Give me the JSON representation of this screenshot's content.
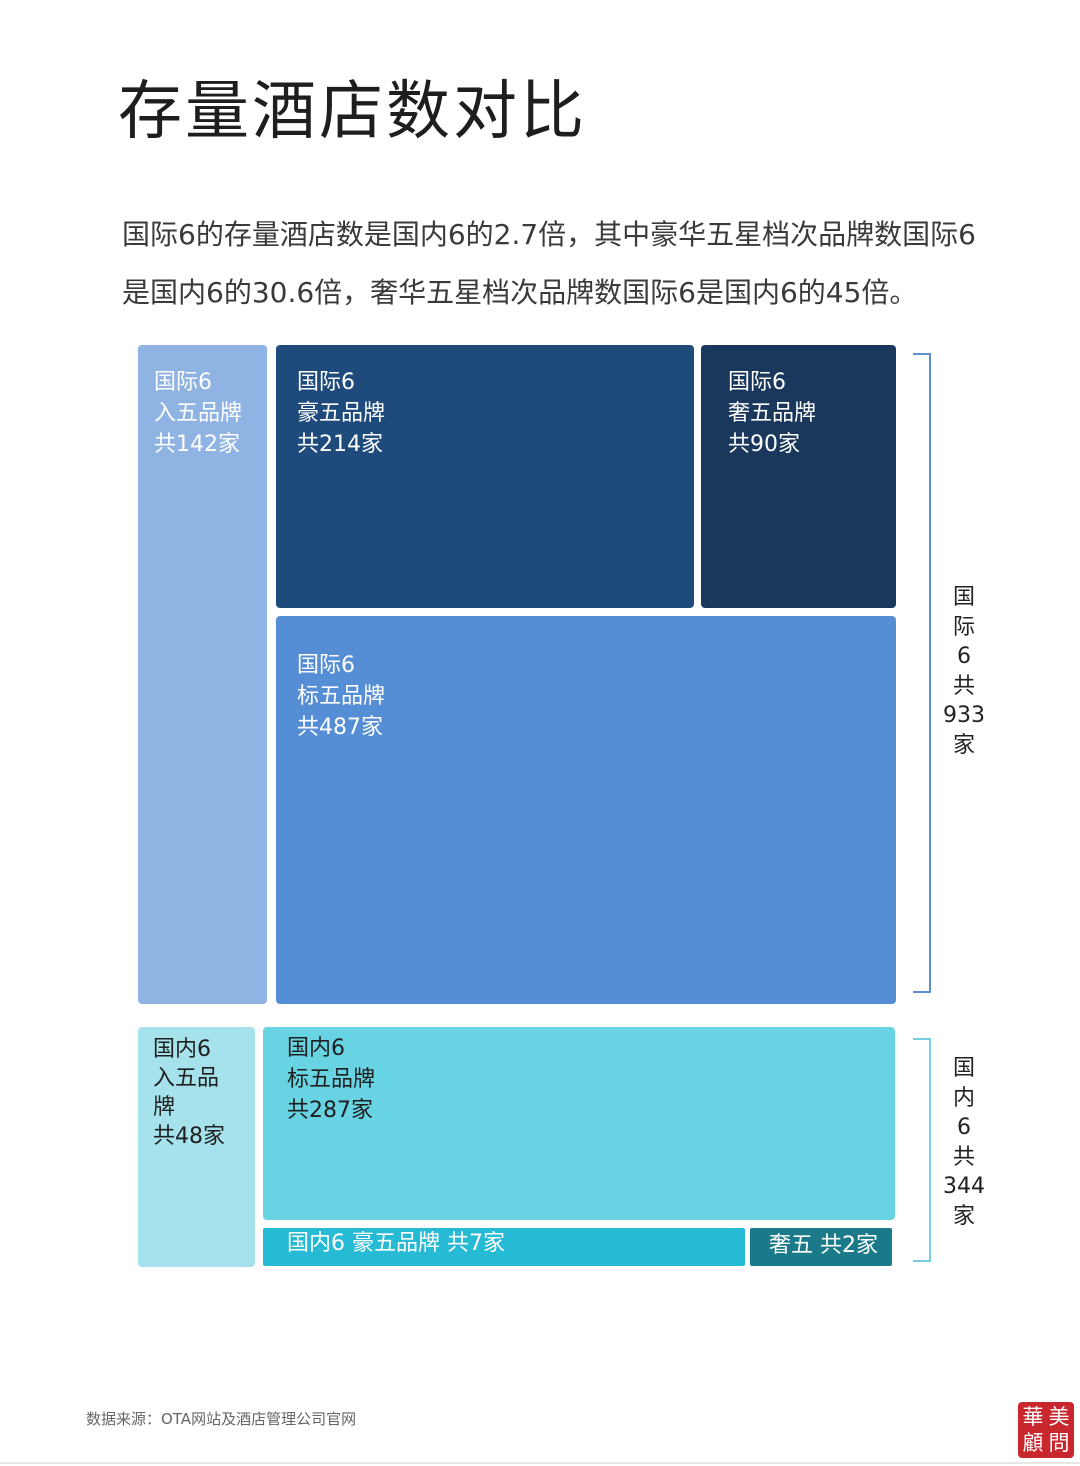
{
  "title": "存量酒店数对比",
  "subtitle": "国际6的存量酒店数是国内6的2.7倍，其中豪华五星档次品牌数国际6是国内6的30.6倍，奢华五星档次品牌数国际6是国内6的45倍。",
  "source": "数据来源：OTA网站及酒店管理公司官网",
  "seal": [
    "華",
    "美",
    "顧",
    "問"
  ],
  "colors": {
    "intl_entry": "#8fb3e2",
    "intl_lux": "#1f4a7c",
    "intl_ultra": "#1a375c",
    "intl_std": "#568ed6",
    "dom_entry": "#a6e2ec",
    "dom_std": "#68d3e2",
    "dom_lux": "#27bad4",
    "dom_ultra": "#1b7a8a",
    "bracket_intl": "#5b8fd0",
    "bracket_dom": "#79cfe0"
  },
  "chart_data": {
    "type": "treemap",
    "groups": [
      {
        "name": "国际6",
        "total": 933,
        "total_label": "国\n际\n6\n共\n933\n家",
        "items": [
          {
            "key": "intl_entry",
            "label": "国际6\n入五品牌\n共142家",
            "value": 142
          },
          {
            "key": "intl_lux",
            "label": "国际6\n豪五品牌\n共214家",
            "value": 214
          },
          {
            "key": "intl_ultra",
            "label": "国际6\n奢五品牌\n共90家",
            "value": 90
          },
          {
            "key": "intl_std",
            "label": "国际6\n标五品牌\n共487家",
            "value": 487
          }
        ]
      },
      {
        "name": "国内6",
        "total": 344,
        "total_label": "国\n内\n6\n共\n344\n家",
        "items": [
          {
            "key": "dom_entry",
            "label": "国内6\n入五品\n牌\n共48家",
            "value": 48
          },
          {
            "key": "dom_std",
            "label": "国内6\n标五品牌\n共287家",
            "value": 287
          },
          {
            "key": "dom_lux",
            "label": "国内6 豪五品牌 共7家",
            "value": 7
          },
          {
            "key": "dom_ultra",
            "label": "奢五 共2家",
            "value": 2
          }
        ]
      }
    ]
  }
}
